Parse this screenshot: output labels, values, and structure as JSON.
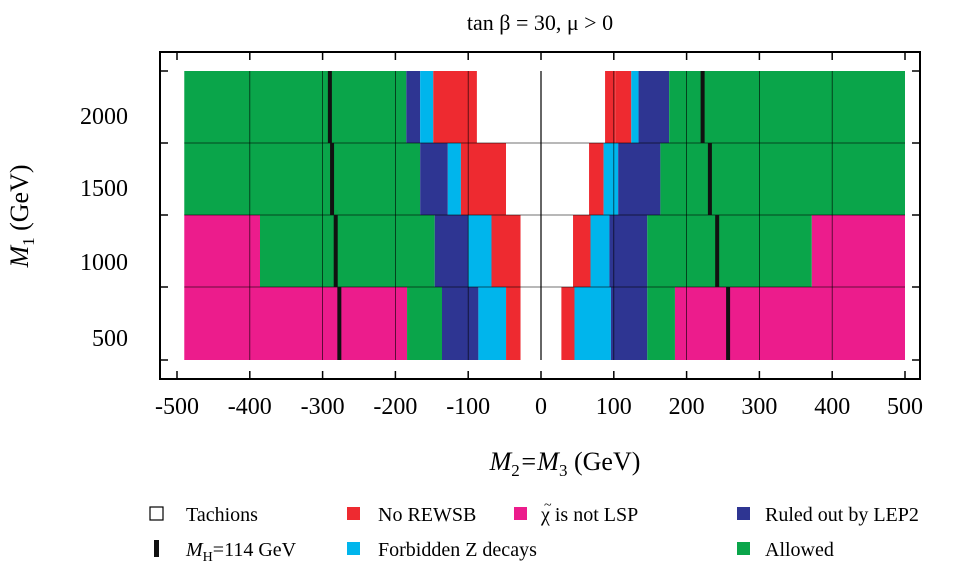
{
  "chart_data": {
    "type": "heatmap",
    "title": "tan β = 30, μ > 0",
    "xlabel": {
      "main": "M",
      "sub1": "2",
      "mid": "=M",
      "sub2": "3",
      "unit": " (GeV)"
    },
    "ylabel": {
      "main": "M",
      "sub": "1",
      "unit": " (GeV)"
    },
    "xlim": [
      -500,
      500
    ],
    "xticks": [
      "-500",
      "-400",
      "-300",
      "-200",
      "-100",
      "0",
      "100",
      "200",
      "300",
      "400",
      "500"
    ],
    "xtick_values": [
      -500,
      -400,
      -300,
      -200,
      -100,
      0,
      100,
      200,
      300,
      400,
      500
    ],
    "yticks": [
      "500",
      "1000",
      "1500",
      "2000"
    ],
    "colors": {
      "tachions": "#ffffff",
      "no_rewsb": "#ee2a30",
      "not_lsp": "#ec1c8c",
      "lep2": "#2e3592",
      "z_decays": "#00b5ec",
      "allowed": "#0aa54a",
      "higgs": "#111111"
    },
    "rows": [
      {
        "m1": "2000",
        "segments": [
          {
            "from": -490,
            "to": -185,
            "cat": "allowed"
          },
          {
            "from": -185,
            "to": -166,
            "cat": "lep2"
          },
          {
            "from": -166,
            "to": -148,
            "cat": "z_decays"
          },
          {
            "from": -148,
            "to": -88,
            "cat": "no_rewsb"
          },
          {
            "from": -88,
            "to": 88,
            "cat": "tachions"
          },
          {
            "from": 88,
            "to": 102,
            "cat": "no_rewsb"
          },
          {
            "from": 102,
            "to": 124,
            "cat": "no_rewsb"
          },
          {
            "from": 124,
            "to": 134,
            "cat": "z_decays"
          },
          {
            "from": 134,
            "to": 176,
            "cat": "lep2"
          },
          {
            "from": 176,
            "to": 500,
            "cat": "allowed"
          }
        ],
        "higgs_neg": -290,
        "higgs_pos": 222
      },
      {
        "m1": "1500",
        "segments": [
          {
            "from": -490,
            "to": -166,
            "cat": "allowed"
          },
          {
            "from": -166,
            "to": -128,
            "cat": "lep2"
          },
          {
            "from": -128,
            "to": -110,
            "cat": "z_decays"
          },
          {
            "from": -110,
            "to": -48,
            "cat": "no_rewsb"
          },
          {
            "from": -48,
            "to": 66,
            "cat": "tachions"
          },
          {
            "from": 66,
            "to": 86,
            "cat": "no_rewsb"
          },
          {
            "from": 86,
            "to": 106,
            "cat": "z_decays"
          },
          {
            "from": 106,
            "to": 164,
            "cat": "lep2"
          },
          {
            "from": 164,
            "to": 500,
            "cat": "allowed"
          }
        ],
        "higgs_neg": -287,
        "higgs_pos": 232
      },
      {
        "m1": "1000",
        "segments": [
          {
            "from": -490,
            "to": -386,
            "cat": "not_lsp"
          },
          {
            "from": -386,
            "to": -146,
            "cat": "allowed"
          },
          {
            "from": -146,
            "to": -100,
            "cat": "lep2"
          },
          {
            "from": -100,
            "to": -68,
            "cat": "z_decays"
          },
          {
            "from": -68,
            "to": -28,
            "cat": "no_rewsb"
          },
          {
            "from": -28,
            "to": 44,
            "cat": "tachions"
          },
          {
            "from": 44,
            "to": 68,
            "cat": "no_rewsb"
          },
          {
            "from": 68,
            "to": 94,
            "cat": "z_decays"
          },
          {
            "from": 94,
            "to": 146,
            "cat": "lep2"
          },
          {
            "from": 146,
            "to": 372,
            "cat": "allowed"
          },
          {
            "from": 372,
            "to": 500,
            "cat": "not_lsp"
          }
        ],
        "higgs_neg": -282,
        "higgs_pos": 242
      },
      {
        "m1": "500",
        "segments": [
          {
            "from": -490,
            "to": -184,
            "cat": "not_lsp"
          },
          {
            "from": -184,
            "to": -136,
            "cat": "allowed"
          },
          {
            "from": -136,
            "to": -86,
            "cat": "lep2"
          },
          {
            "from": -86,
            "to": -48,
            "cat": "z_decays"
          },
          {
            "from": -48,
            "to": -28,
            "cat": "no_rewsb"
          },
          {
            "from": -28,
            "to": 28,
            "cat": "tachions"
          },
          {
            "from": 28,
            "to": 46,
            "cat": "no_rewsb"
          },
          {
            "from": 46,
            "to": 96,
            "cat": "z_decays"
          },
          {
            "from": 96,
            "to": 146,
            "cat": "lep2"
          },
          {
            "from": 146,
            "to": 184,
            "cat": "allowed"
          },
          {
            "from": 184,
            "to": 500,
            "cat": "not_lsp"
          }
        ],
        "higgs_neg": -277,
        "higgs_pos": 257
      }
    ],
    "legend": [
      {
        "name": "Tachions",
        "cat": "tachions"
      },
      {
        "name": "No REWSB",
        "cat": "no_rewsb"
      },
      {
        "name": "χ is not LSP",
        "cat": "not_lsp"
      },
      {
        "name": "Ruled out by LEP2",
        "cat": "lep2"
      },
      {
        "name": "=114 GeV",
        "cat": "higgs",
        "prefix": "M",
        "sub": "H"
      },
      {
        "name": "Forbidden Z decays",
        "cat": "z_decays"
      },
      {
        "name": "Allowed",
        "cat": "allowed"
      }
    ]
  }
}
